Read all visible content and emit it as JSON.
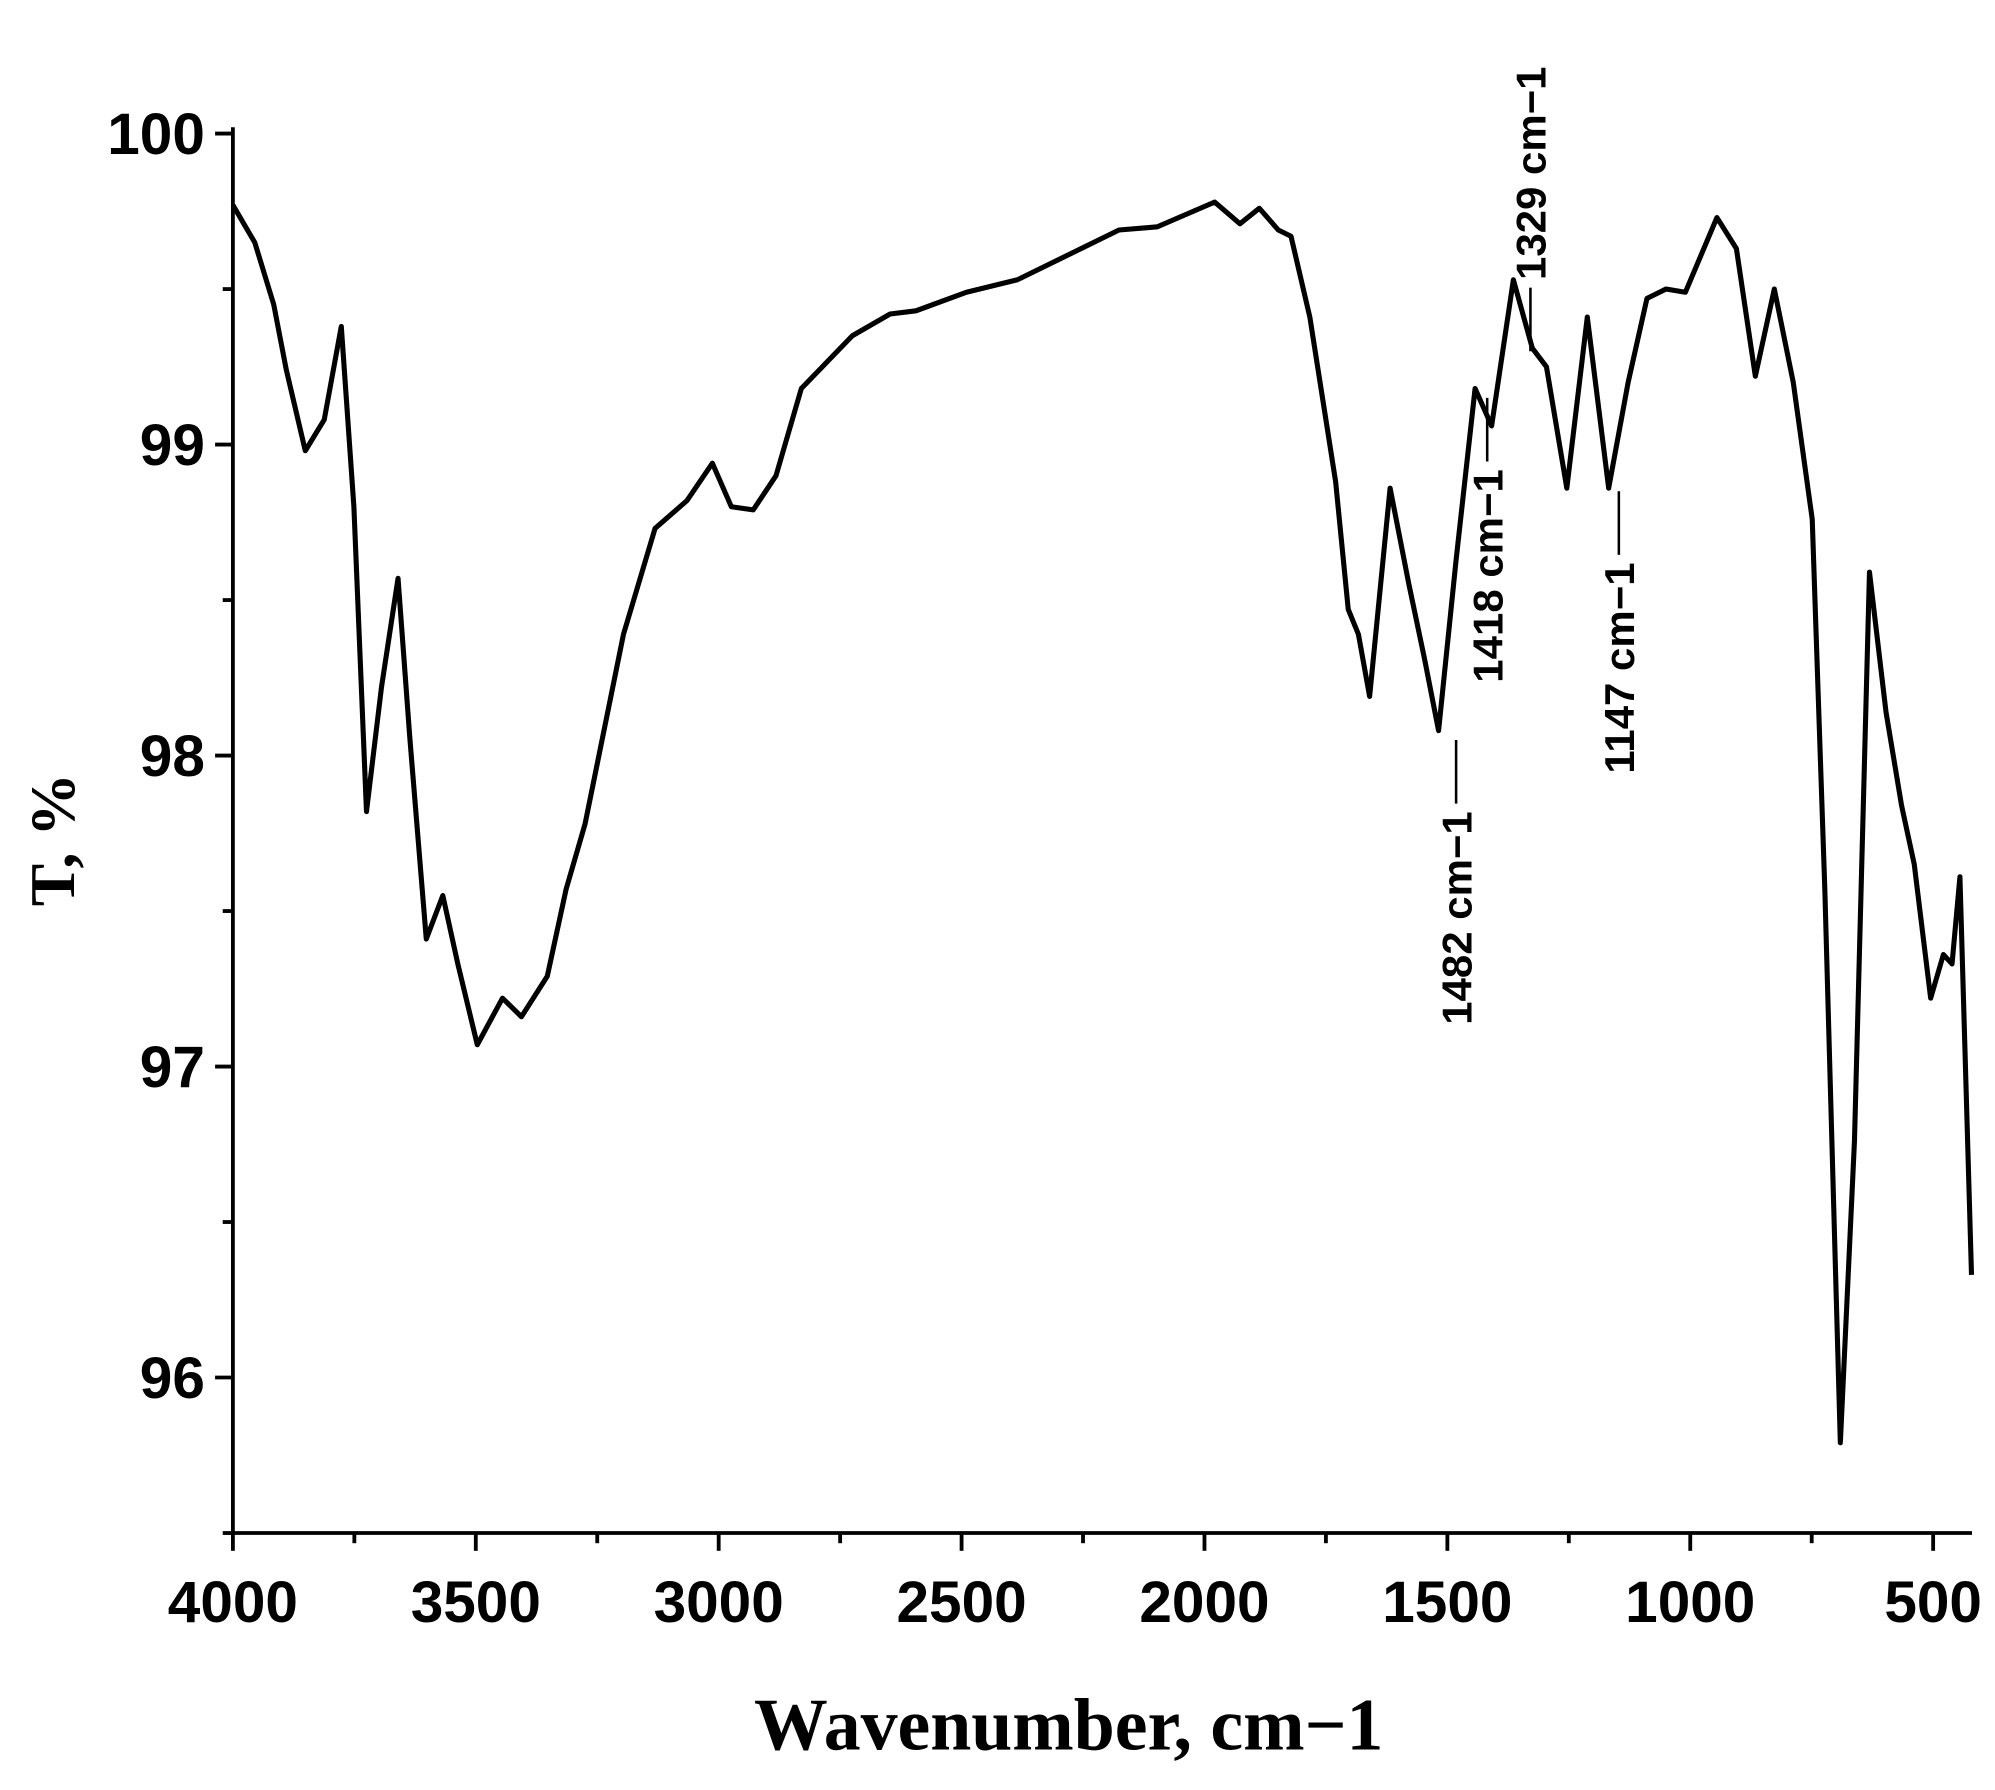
{
  "chart_data": {
    "type": "line",
    "x_label": "Wavenumber, cm−1",
    "y_label": "T, %",
    "xlim": [
      4000,
      420
    ],
    "ylim": [
      95.5,
      100
    ],
    "xticks": [
      4000,
      3500,
      3000,
      2500,
      2000,
      1500,
      1000,
      500
    ],
    "xminor": [
      3750,
      3250,
      2750,
      2250,
      1750,
      1250,
      750
    ],
    "yticks": [
      96,
      97,
      98,
      99,
      100
    ],
    "yminor": [
      95.5,
      96.5,
      97.5,
      98.5,
      99.5
    ],
    "color": "#000000",
    "x": [
      4000,
      3955,
      3916,
      3890,
      3851,
      3812,
      3777,
      3751,
      3725,
      3694,
      3660,
      3636,
      3602,
      3568,
      3537,
      3497,
      3445,
      3406,
      3353,
      3314,
      3275,
      3196,
      3131,
      3065,
      3013,
      2974,
      2929,
      2882,
      2830,
      2725,
      2647,
      2594,
      2490,
      2385,
      2176,
      2097,
      1979,
      1927,
      1887,
      1848,
      1822,
      1783,
      1730,
      1704,
      1683,
      1660,
      1618,
      1579,
      1547,
      1518,
      1482,
      1443,
      1409,
      1364,
      1325,
      1296,
      1254,
      1212,
      1168,
      1128,
      1089,
      1050,
      1010,
      945,
      905,
      866,
      827,
      788,
      749,
      723,
      691,
      662,
      631,
      597,
      565,
      539,
      505,
      479,
      461,
      445,
      421
    ],
    "values": [
      99.77,
      99.65,
      99.45,
      99.24,
      98.98,
      99.08,
      99.38,
      98.8,
      97.82,
      98.22,
      98.57,
      98.06,
      97.41,
      97.55,
      97.33,
      97.07,
      97.22,
      97.16,
      97.29,
      97.57,
      97.78,
      98.39,
      98.73,
      98.82,
      98.94,
      98.8,
      98.79,
      98.9,
      99.18,
      99.35,
      99.42,
      99.43,
      99.49,
      99.53,
      99.69,
      99.7,
      99.78,
      99.71,
      99.76,
      99.69,
      99.67,
      99.41,
      98.88,
      98.47,
      98.39,
      98.19,
      98.86,
      98.55,
      98.31,
      98.08,
      98.63,
      99.18,
      99.06,
      99.53,
      99.31,
      99.25,
      98.86,
      99.41,
      98.86,
      99.2,
      99.47,
      99.5,
      99.49,
      99.73,
      99.63,
      99.22,
      99.5,
      99.2,
      98.76,
      97.57,
      95.79,
      96.76,
      98.59,
      98.14,
      97.84,
      97.65,
      97.22,
      97.36,
      97.33,
      97.61,
      96.33
    ],
    "annotations": [
      {
        "text": "1482 cm−1",
        "x": 1482,
        "y": 98.05,
        "side": "below"
      },
      {
        "text": "1418 cm−1",
        "x": 1418,
        "y": 99.15,
        "side": "below"
      },
      {
        "text": "1329 cm−1",
        "x": 1329,
        "y": 99.3,
        "side": "above"
      },
      {
        "text": "1147 cm−1",
        "x": 1147,
        "y": 98.85,
        "side": "below"
      }
    ]
  }
}
